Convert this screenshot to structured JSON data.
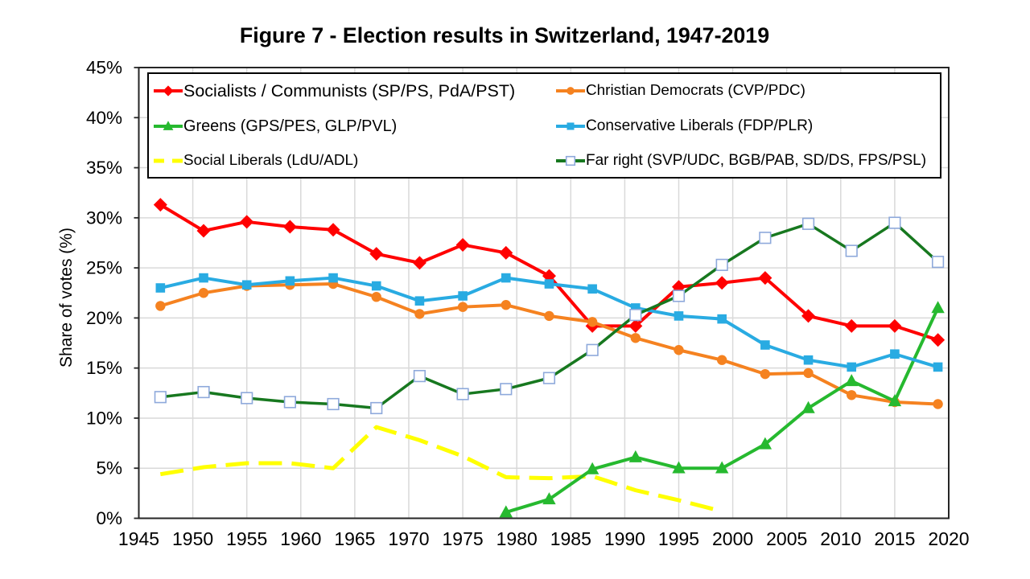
{
  "chart_data": {
    "type": "line",
    "title": "Figure 7 - Election results in Switzerland, 1947-2019",
    "xlabel": "",
    "ylabel": "Share of votes (%)",
    "xlim": [
      1945,
      2020
    ],
    "ylim": [
      0,
      45
    ],
    "x_tick_labels": [
      "1945",
      "1950",
      "1955",
      "1960",
      "1965",
      "1970",
      "1975",
      "1980",
      "1985",
      "1990",
      "1995",
      "2000",
      "2005",
      "2010",
      "2015",
      "2020"
    ],
    "y_tick_labels": [
      "0%",
      "5%",
      "10%",
      "15%",
      "20%",
      "25%",
      "30%",
      "35%",
      "40%",
      "45%"
    ],
    "grid": true,
    "legend_position": "top-inside",
    "x": [
      1947,
      1951,
      1955,
      1959,
      1963,
      1967,
      1971,
      1975,
      1979,
      1983,
      1987,
      1991,
      1995,
      1999,
      2003,
      2007,
      2011,
      2015,
      2019
    ],
    "series": [
      {
        "id": "socialists",
        "name": "Socialists / Communists (SP/PS, PdA/PST)",
        "color": "#FF0000",
        "marker": "diamond",
        "line": "solid",
        "values": [
          31.3,
          28.7,
          29.6,
          29.1,
          28.8,
          26.4,
          25.5,
          27.3,
          26.5,
          24.2,
          19.2,
          19.2,
          23.1,
          23.5,
          24.0,
          20.2,
          19.2,
          19.2,
          17.8
        ]
      },
      {
        "id": "christian_democrats",
        "name": "Christian Democrats (CVP/PDC)",
        "color": "#F58220",
        "marker": "circle",
        "line": "solid",
        "values": [
          21.2,
          22.5,
          23.2,
          23.3,
          23.4,
          22.1,
          20.4,
          21.1,
          21.3,
          20.2,
          19.6,
          18.0,
          16.8,
          15.8,
          14.4,
          14.5,
          12.3,
          11.6,
          11.4
        ]
      },
      {
        "id": "greens",
        "name": "Greens (GPS/PES, GLP/PVL)",
        "color": "#26B92F",
        "marker": "triangle",
        "line": "solid",
        "values": [
          null,
          null,
          null,
          null,
          null,
          null,
          null,
          null,
          0.6,
          1.9,
          4.9,
          6.1,
          5.0,
          5.0,
          7.4,
          11.0,
          13.7,
          11.7,
          21.0
        ]
      },
      {
        "id": "conservative_liberals",
        "name": "Conservative Liberals (FDP/PLR)",
        "color": "#29ABE2",
        "marker": "square",
        "line": "solid",
        "values": [
          23.0,
          24.0,
          23.3,
          23.7,
          24.0,
          23.2,
          21.7,
          22.2,
          24.0,
          23.4,
          22.9,
          21.0,
          20.2,
          19.9,
          17.3,
          15.8,
          15.1,
          16.4,
          15.1
        ]
      },
      {
        "id": "social_liberals",
        "name": "Social Liberals (LdU/ADL)",
        "color": "#FFFF00",
        "marker": "none",
        "line": "dashed",
        "values": [
          4.4,
          5.1,
          5.5,
          5.5,
          5.0,
          9.1,
          7.8,
          6.2,
          4.1,
          4.0,
          4.2,
          2.8,
          1.8,
          0.7,
          null,
          null,
          null,
          null,
          null
        ]
      },
      {
        "id": "far_right",
        "name": "Far right (SVP/UDC, BGB/PAB, SD/DS, FPS/PSL)",
        "color": "#17781F",
        "marker": "square_open",
        "marker_border": "#8EA9DB",
        "line": "solid",
        "values": [
          12.1,
          12.6,
          12.0,
          11.6,
          11.4,
          11.0,
          14.2,
          12.4,
          12.9,
          14.0,
          16.8,
          20.3,
          22.2,
          25.3,
          28.0,
          29.4,
          26.7,
          29.5,
          25.6
        ]
      }
    ],
    "style": {
      "grid_color": "#D9D9D9",
      "axis_color": "#262626",
      "text_color": "#000000"
    }
  }
}
